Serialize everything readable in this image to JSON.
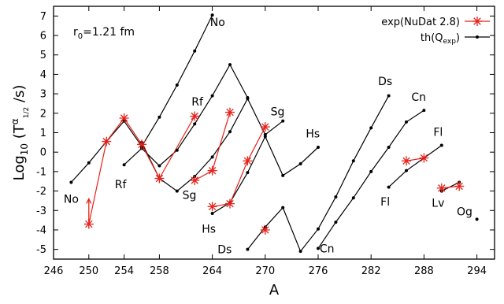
{
  "chart_data": {
    "type": "line",
    "xlabel": "A",
    "ylabel": "Log10 (Tα1/2 /s)",
    "ylabel_parts": {
      "main": "Log",
      "sub10": "10",
      "open": " (T",
      "sup": "α",
      "sub": "1/2",
      "close": " /s)"
    },
    "xlim": [
      246,
      296
    ],
    "ylim": [
      -5.5,
      7.5
    ],
    "xticks": [
      246,
      250,
      254,
      258,
      264,
      270,
      276,
      282,
      288,
      294
    ],
    "xtick_labels": [
      "246",
      "250",
      "254",
      "258",
      "264",
      "270",
      "276",
      "282",
      "288",
      "294"
    ],
    "yticks": [
      -5,
      -4,
      -3,
      -2,
      -1,
      0,
      1,
      2,
      3,
      4,
      5,
      6,
      7
    ],
    "ytick_labels": [
      "-5",
      "-4",
      "-3",
      "-2",
      "-1",
      "0",
      "1",
      "2",
      "3",
      "4",
      "5",
      "6",
      "7"
    ],
    "grid": false,
    "legend_position": "top-right",
    "annotation_r0": {
      "prefix": "r",
      "sub": "0",
      "suffix": "=1.21 fm"
    },
    "series": [
      {
        "name": "th(Qexp)",
        "name_parts": {
          "main": "th(Q",
          "sub": "exp",
          "close": ")"
        },
        "color": "#000000",
        "marker": "dot",
        "lines": [
          {
            "label": "No",
            "x": [
              248,
              250,
              252,
              254,
              256,
              258,
              260,
              262,
              264
            ],
            "y": [
              -1.55,
              -0.55,
              0.55,
              1.6,
              0.3,
              1.8,
              3.45,
              5.2,
              7.05
            ]
          },
          {
            "label": "Rf",
            "x": [
              254,
              256,
              258,
              260,
              262,
              264,
              266,
              268
            ],
            "y": [
              -0.65,
              0.2,
              -0.7,
              0.1,
              1.45,
              2.9,
              4.5,
              2.8
            ]
          },
          {
            "label": "Sg",
            "x": [
              256,
              258,
              260,
              262,
              264,
              266,
              268,
              270,
              272
            ],
            "y": [
              0.5,
              -1.35,
              -2.0,
              -1.25,
              -0.25,
              1.05,
              2.75,
              0.9,
              1.6
            ]
          },
          {
            "label": "Hs",
            "x": [
              264,
              266,
              268,
              270,
              272,
              274,
              276
            ],
            "y": [
              -3.15,
              -2.6,
              -1.05,
              0.8,
              -1.2,
              -0.6,
              0.25
            ]
          },
          {
            "label": "Ds",
            "x": [
              268,
              270,
              272,
              274,
              276,
              278,
              280,
              282,
              284
            ],
            "y": [
              -5.0,
              -3.85,
              -2.85,
              -5.1,
              -3.95,
              -2.3,
              -0.45,
              1.25,
              2.9
            ]
          },
          {
            "label": "Cn",
            "x": [
              276,
              278,
              280,
              282,
              284,
              286,
              288
            ],
            "y": [
              -4.95,
              -3.6,
              -2.35,
              -1.0,
              0.25,
              1.55,
              2.15
            ]
          },
          {
            "label": "Fl",
            "x": [
              284,
              286,
              288,
              290
            ],
            "y": [
              -1.8,
              -0.95,
              -0.3,
              0.35
            ]
          },
          {
            "label": "Lv",
            "x": [
              290,
              292
            ],
            "y": [
              -2.0,
              -1.55
            ]
          },
          {
            "label": "Og",
            "x": [
              294
            ],
            "y": [
              -3.45
            ]
          }
        ]
      },
      {
        "name": "exp(NuDat 2.8)",
        "color": "#e8211a",
        "marker": "asterisk",
        "lines": [
          {
            "label": "No",
            "x": [
              250,
              252,
              254,
              256,
              258,
              262
            ],
            "y": [
              -3.7,
              0.55,
              1.75,
              0.4,
              -1.35,
              1.85
            ]
          },
          {
            "label": "Sg",
            "x": [
              262,
              264,
              266
            ],
            "y": [
              -1.45,
              -0.95,
              2.05
            ]
          },
          {
            "label": "Hs",
            "x": [
              264,
              266,
              268,
              270
            ],
            "y": [
              -2.8,
              -2.65,
              -0.45,
              1.3
            ]
          },
          {
            "label": "Ds",
            "x": [
              270
            ],
            "y": [
              -4.0
            ]
          },
          {
            "label": "Fl",
            "x": [
              286,
              288
            ],
            "y": [
              -0.45,
              -0.3
            ]
          },
          {
            "label": "Lv",
            "x": [
              290,
              292
            ],
            "y": [
              -1.85,
              -1.75
            ]
          }
        ]
      }
    ],
    "isotope_labels": [
      {
        "text": "No",
        "x": 264.6,
        "y": 6.7
      },
      {
        "text": "No",
        "x": 248.0,
        "y": -2.4
      },
      {
        "text": "Rf",
        "x": 262.3,
        "y": 2.6
      },
      {
        "text": "Rf",
        "x": 253.6,
        "y": -1.65
      },
      {
        "text": "Sg",
        "x": 271.4,
        "y": 2.1
      },
      {
        "text": "Sg",
        "x": 261.4,
        "y": -2.2
      },
      {
        "text": "Hs",
        "x": 275.4,
        "y": 0.95
      },
      {
        "text": "Hs",
        "x": 263.6,
        "y": -3.95
      },
      {
        "text": "Ds",
        "x": 283.6,
        "y": 3.65
      },
      {
        "text": "Ds",
        "x": 265.4,
        "y": -5.0
      },
      {
        "text": "Cn",
        "x": 287.4,
        "y": 2.85
      },
      {
        "text": "Cn",
        "x": 277.0,
        "y": -4.95
      },
      {
        "text": "Fl",
        "x": 289.6,
        "y": 1.05
      },
      {
        "text": "Fl",
        "x": 283.6,
        "y": -2.55
      },
      {
        "text": "Lv",
        "x": 289.6,
        "y": -2.6
      },
      {
        "text": "Og",
        "x": 292.6,
        "y": -3.05
      }
    ],
    "error_arrow": {
      "x": 250,
      "y_from": -3.6,
      "y_to": -2.4
    }
  }
}
